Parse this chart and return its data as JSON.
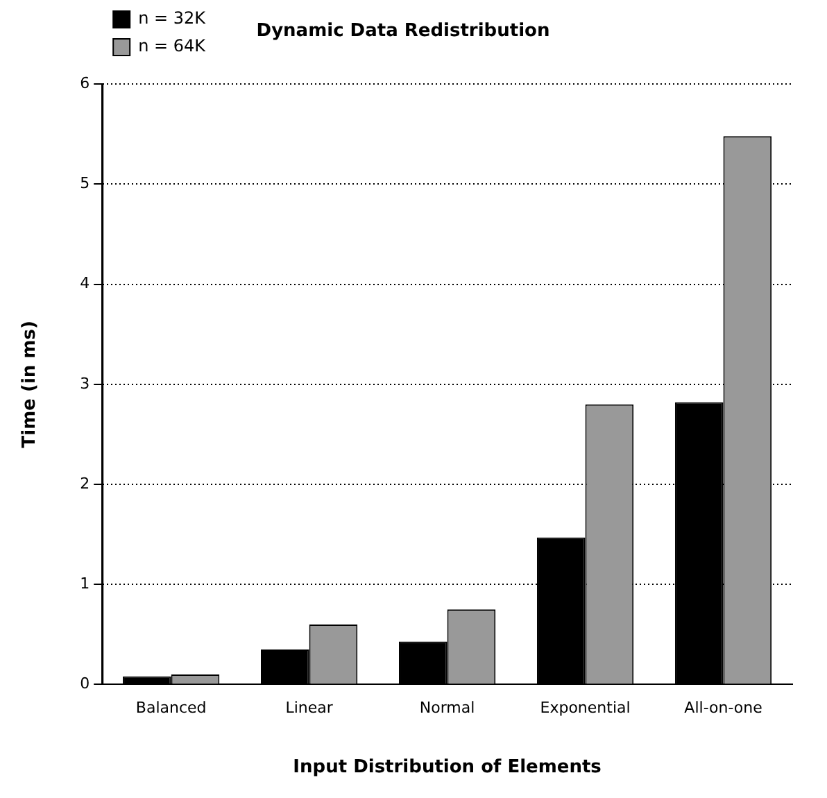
{
  "chart_data": {
    "type": "bar",
    "title": "Dynamic Data Redistribution",
    "xlabel": "Input Distribution of Elements",
    "ylabel": "Time (in ms)",
    "categories": [
      "Balanced",
      "Linear",
      "Normal",
      "Exponential",
      "All-on-one"
    ],
    "series": [
      {
        "name": "n = 32K",
        "color": "#000000",
        "values": [
          0.08,
          0.35,
          0.43,
          1.47,
          2.82
        ]
      },
      {
        "name": "n = 64K",
        "color": "#999999",
        "values": [
          0.1,
          0.6,
          0.75,
          2.8,
          5.48
        ]
      }
    ],
    "ylim": [
      0,
      6
    ],
    "yticks": [
      0,
      1,
      2,
      3,
      4,
      5,
      6
    ],
    "grid": "y",
    "legend": "top left"
  }
}
